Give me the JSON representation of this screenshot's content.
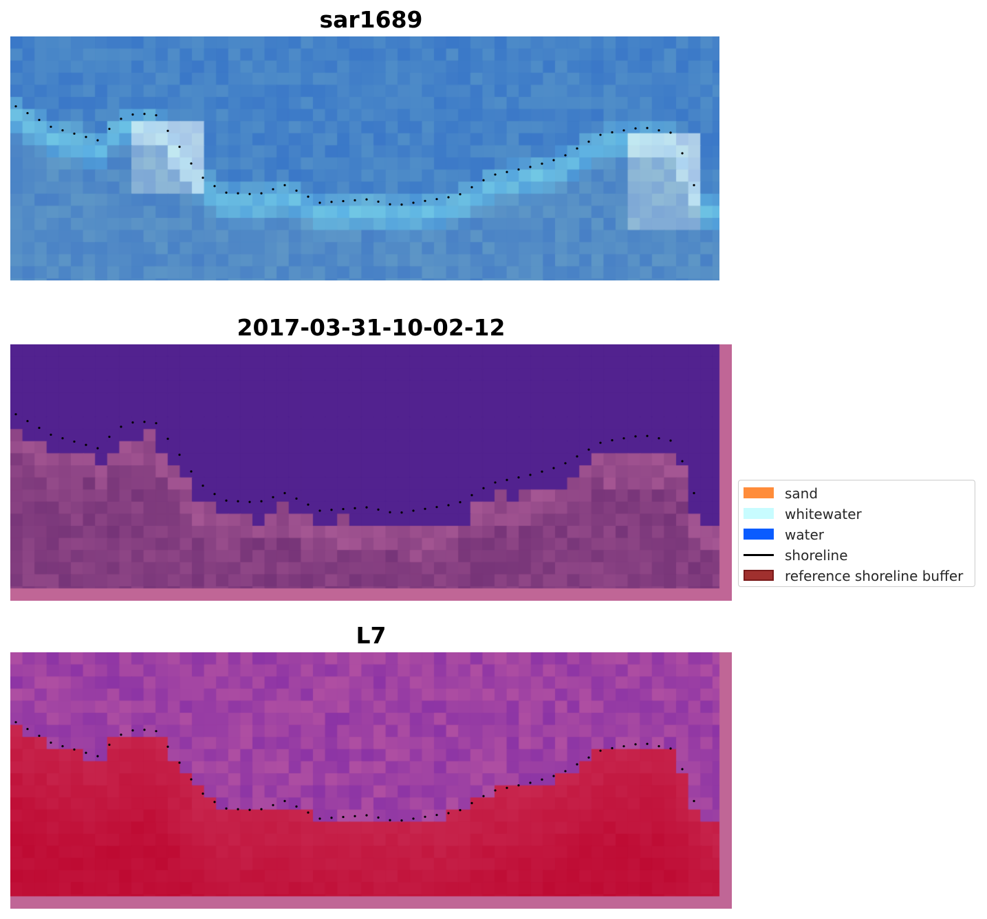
{
  "panels": [
    {
      "title": "sar1689",
      "style": "sar"
    },
    {
      "title": "2017-03-31-10-02-12",
      "style": "classification"
    },
    {
      "title": "L7",
      "style": "index"
    }
  ],
  "legend": {
    "items": [
      {
        "label": "sand",
        "color": "#ff8c3a",
        "kind": "patch"
      },
      {
        "label": "whitewater",
        "color": "#c8fcff",
        "kind": "patch"
      },
      {
        "label": "water",
        "color": "#0a5cff",
        "kind": "patch"
      },
      {
        "label": "shoreline",
        "color": "#000000",
        "kind": "line"
      },
      {
        "label": "reference shoreline buffer",
        "color": "#a0302e",
        "kind": "patch",
        "edge": "#7a1a1a"
      }
    ]
  },
  "colors": {
    "water_class": "#52228f",
    "buffer_overlay": "#c06696",
    "index_land": "#c0123a",
    "index_water": "#8a34a0",
    "sar_base": "#3b78c4"
  }
}
